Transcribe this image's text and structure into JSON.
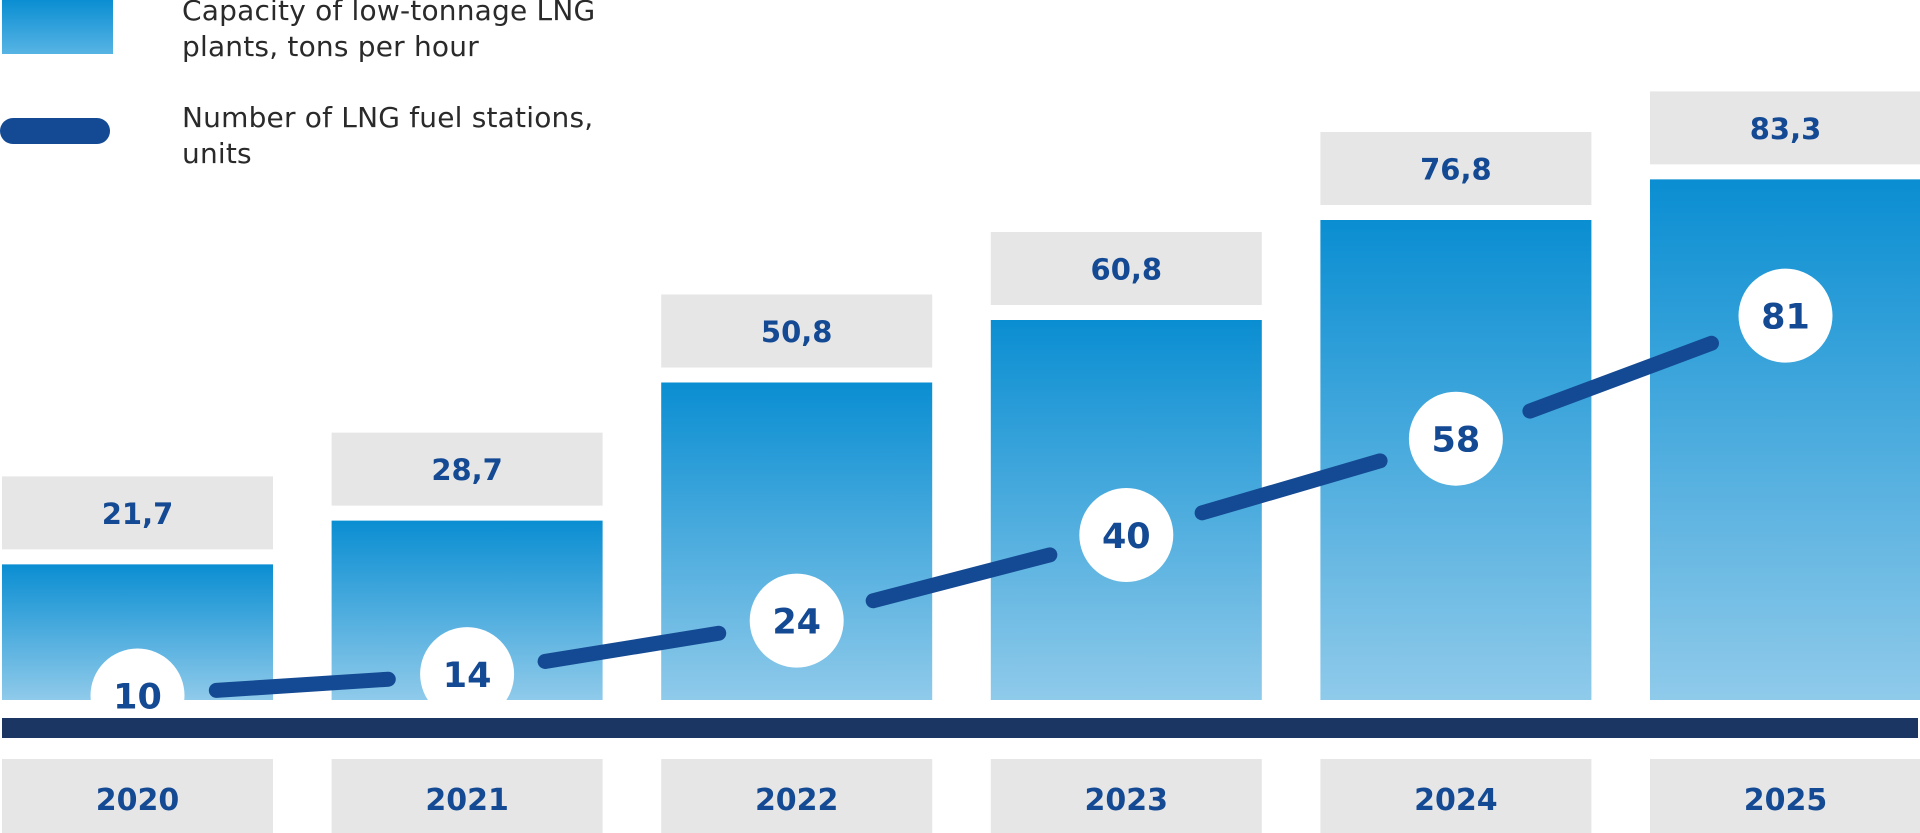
{
  "legend": {
    "bar_label": "Capacity of low-tonnage LNG plants, tons per hour",
    "line_label": "Number of LNG fuel stations, units"
  },
  "colors": {
    "bar_top": "#0a8ed2",
    "bar_bottom": "#8fcaea",
    "line": "#144a93",
    "label_box": "#e6e6e6",
    "axis": "#1c3664",
    "text": "#144a93"
  },
  "chart_data": {
    "type": "bar",
    "categories": [
      "2020",
      "2021",
      "2022",
      "2023",
      "2024",
      "2025"
    ],
    "series": [
      {
        "name": "Capacity of low-tonnage LNG plants, tons per hour",
        "type": "bar",
        "values": [
          21.7,
          28.7,
          50.8,
          60.8,
          76.8,
          83.3
        ],
        "labels": [
          "21,7",
          "28,7",
          "50,8",
          "60,8",
          "76,8",
          "83,3"
        ]
      },
      {
        "name": "Number of LNG fuel stations, units",
        "type": "line",
        "values": [
          10,
          14,
          24,
          40,
          58,
          81
        ],
        "labels": [
          "10",
          "14",
          "24",
          "40",
          "58",
          "81"
        ]
      }
    ],
    "legend_position": "top-left",
    "grid": false
  }
}
